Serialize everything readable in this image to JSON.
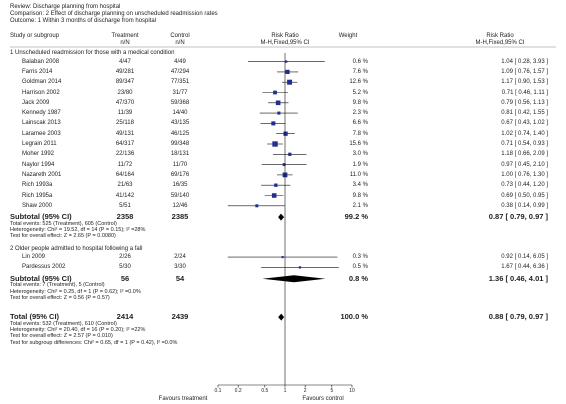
{
  "header": {
    "review": "Review:   Discharge planning from hospital",
    "comparison": "Comparison:   2 Effect of discharge planning on unscheduled readmission rates",
    "outcome": "Outcome:   1 Within 3 months of discharge from hospital"
  },
  "columns": {
    "study": "Study or subgroup",
    "treatment": "Treatment",
    "control": "Control",
    "n_sub": "n/N",
    "rr": "Risk Ratio",
    "method": "M-H,Fixed,95% CI",
    "weight": "Weight"
  },
  "subgroups": [
    {
      "heading": "1 Unscheduled readmission for those with a medical condition",
      "studies": [
        {
          "name": "Balaban 2008",
          "treatment": "4/47",
          "control": "4/49",
          "weight": "0.6 %",
          "rr_text": "1.04 [ 0.28, 3.93 ]"
        },
        {
          "name": "Farris 2014",
          "treatment": "49/281",
          "control": "47/294",
          "weight": "7.6 %",
          "rr_text": "1.09 [ 0.76, 1.57 ]"
        },
        {
          "name": "Goldman 2014",
          "treatment": "89/347",
          "control": "77/351",
          "weight": "12.6 %",
          "rr_text": "1.17 [ 0.90, 1.53 ]"
        },
        {
          "name": "Harrison 2002",
          "treatment": "23/80",
          "control": "31/77",
          "weight": "5.2 %",
          "rr_text": "0.71 [ 0.46, 1.11 ]"
        },
        {
          "name": "Jack 2009",
          "treatment": "47/370",
          "control": "59/368",
          "weight": "9.8 %",
          "rr_text": "0.79 [ 0.56, 1.13 ]"
        },
        {
          "name": "Kennedy 1987",
          "treatment": "11/39",
          "control": "14/40",
          "weight": "2.3 %",
          "rr_text": "0.81 [ 0.42, 1.55 ]"
        },
        {
          "name": "Lainscak 2013",
          "treatment": "25/118",
          "control": "43/135",
          "weight": "6.6 %",
          "rr_text": "0.67 [ 0.43, 1.02 ]"
        },
        {
          "name": "Laramee 2003",
          "treatment": "49/131",
          "control": "46/125",
          "weight": "7.8 %",
          "rr_text": "1.02 [ 0.74, 1.40 ]"
        },
        {
          "name": "Legrain 2011",
          "treatment": "64/317",
          "control": "99/348",
          "weight": "15.6 %",
          "rr_text": "0.71 [ 0.54, 0.93 ]"
        },
        {
          "name": "Moher 1992",
          "treatment": "22/136",
          "control": "18/131",
          "weight": "3.0 %",
          "rr_text": "1.18 [ 0.66, 2.09 ]"
        },
        {
          "name": "Naylor 1994",
          "treatment": "11/72",
          "control": "11/70",
          "weight": "1.9 %",
          "rr_text": "0.97 [ 0.45, 2.10 ]"
        },
        {
          "name": "Nazareth 2001",
          "treatment": "64/164",
          "control": "69/176",
          "weight": "11.0 %",
          "rr_text": "1.00 [ 0.76, 1.30 ]"
        },
        {
          "name": "Rich 1993a",
          "treatment": "21/63",
          "control": "16/35",
          "weight": "3.4 %",
          "rr_text": "0.73 [ 0.44, 1.20 ]"
        },
        {
          "name": "Rich 1995a",
          "treatment": "41/142",
          "control": "59/140",
          "weight": "9.8 %",
          "rr_text": "0.69 [ 0.50, 0.95 ]"
        },
        {
          "name": "Shaw 2000",
          "treatment": "5/51",
          "control": "12/46",
          "weight": "2.1 %",
          "rr_text": "0.38 [ 0.14, 0.99 ]"
        }
      ],
      "subtotal": {
        "label": "Subtotal (95% CI)",
        "treatment": "2358",
        "control": "2385",
        "weight": "99.2 %",
        "rr_text": "0.87 [ 0.79, 0.97 ]"
      },
      "notes": [
        "Total events: 525 (Treatment), 605 (Control)",
        "Heterogeneity: Chi² = 19.52, df = 14 (P = 0.15); I² =28%",
        "Test for overall effect: Z = 2.65 (P = 0.0080)"
      ]
    },
    {
      "heading": "2 Older people admitted to hospital following a fall",
      "studies": [
        {
          "name": "Lin 2009",
          "treatment": "2/26",
          "control": "2/24",
          "weight": "0.3 %",
          "rr_text": "0.92 [ 0.14, 6.05 ]"
        },
        {
          "name": "Pardessus 2002",
          "treatment": "5/30",
          "control": "3/30",
          "weight": "0.5 %",
          "rr_text": "1.67 [ 0.44, 6.36 ]"
        }
      ],
      "subtotal": {
        "label": "Subtotal (95% CI)",
        "treatment": "56",
        "control": "54",
        "weight": "0.8 %",
        "rr_text": "1.36 [ 0.46, 4.01 ]"
      },
      "notes": [
        "Total events: 7 (Treatment), 5 (Control)",
        "Heterogeneity: Chi² = 0.25, df = 1 (P = 0.62); I² =0.0%",
        "Test for overall effect: Z = 0.56 (P = 0.57)"
      ]
    }
  ],
  "total": {
    "label": "Total (95% CI)",
    "treatment": "2414",
    "control": "2439",
    "weight": "100.0 %",
    "rr_text": "0.88 [ 0.79, 0.97 ]"
  },
  "total_notes": [
    "Total events: 532 (Treatment), 610 (Control)",
    "Heterogeneity: Chi² = 20.40, df = 16 (P = 0.20); I² =22%",
    "Test for overall effect: Z = 2.57 (P = 0.010)",
    "Test for subgroup differences: Chi² = 0.65, df = 1 (P = 0.42), I² =0.0%"
  ],
  "footer": {
    "left": "Favours treatment",
    "right": "Favours control"
  },
  "chart_data": {
    "type": "forest",
    "scale": "log",
    "xlim": [
      0.1,
      10
    ],
    "ticks": [
      0.1,
      0.2,
      0.5,
      1,
      2,
      5,
      10
    ],
    "tick_labels": [
      "0.1",
      "0.2",
      "0.5",
      "1",
      "2",
      "5",
      "10"
    ],
    "colors": {
      "study": "#1f2f8f",
      "summary": "#000000"
    },
    "studies": [
      {
        "rr": 1.04,
        "lo": 0.28,
        "hi": 3.93,
        "w": 0.6
      },
      {
        "rr": 1.09,
        "lo": 0.76,
        "hi": 1.57,
        "w": 7.6
      },
      {
        "rr": 1.17,
        "lo": 0.9,
        "hi": 1.53,
        "w": 12.6
      },
      {
        "rr": 0.71,
        "lo": 0.46,
        "hi": 1.11,
        "w": 5.2
      },
      {
        "rr": 0.79,
        "lo": 0.56,
        "hi": 1.13,
        "w": 9.8
      },
      {
        "rr": 0.81,
        "lo": 0.42,
        "hi": 1.55,
        "w": 2.3
      },
      {
        "rr": 0.67,
        "lo": 0.43,
        "hi": 1.02,
        "w": 6.6
      },
      {
        "rr": 1.02,
        "lo": 0.74,
        "hi": 1.4,
        "w": 7.8
      },
      {
        "rr": 0.71,
        "lo": 0.54,
        "hi": 0.93,
        "w": 15.6
      },
      {
        "rr": 1.18,
        "lo": 0.66,
        "hi": 2.09,
        "w": 3.0
      },
      {
        "rr": 0.97,
        "lo": 0.45,
        "hi": 2.1,
        "w": 1.9
      },
      {
        "rr": 1.0,
        "lo": 0.76,
        "hi": 1.3,
        "w": 11.0
      },
      {
        "rr": 0.73,
        "lo": 0.44,
        "hi": 1.2,
        "w": 3.4
      },
      {
        "rr": 0.69,
        "lo": 0.5,
        "hi": 0.95,
        "w": 9.8
      },
      {
        "rr": 0.38,
        "lo": 0.14,
        "hi": 0.99,
        "w": 2.1
      },
      {
        "rr": 0.92,
        "lo": 0.14,
        "hi": 6.05,
        "w": 0.3
      },
      {
        "rr": 1.67,
        "lo": 0.44,
        "hi": 6.36,
        "w": 0.5
      }
    ],
    "summaries": [
      {
        "rr": 0.87,
        "lo": 0.79,
        "hi": 0.97
      },
      {
        "rr": 1.36,
        "lo": 0.46,
        "hi": 4.01
      },
      {
        "rr": 0.88,
        "lo": 0.79,
        "hi": 0.97
      }
    ]
  }
}
